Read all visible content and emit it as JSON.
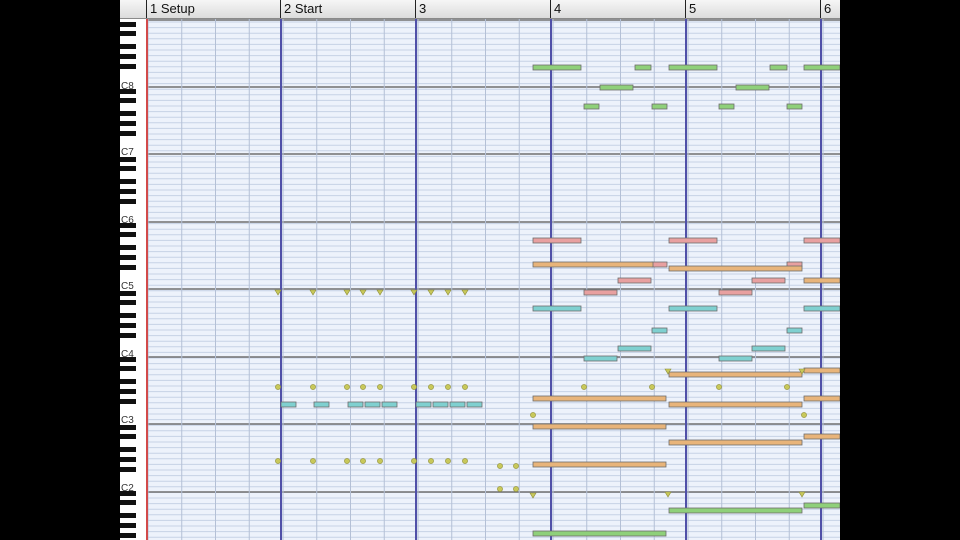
{
  "ruler": {
    "markers": [
      {
        "label": "1 Setup"
      },
      {
        "label": "2 Start"
      },
      {
        "label": "3"
      },
      {
        "label": "4"
      },
      {
        "label": "5"
      },
      {
        "label": "6"
      }
    ]
  },
  "keyboard": {
    "octave_labels": [
      "C8",
      "C7",
      "C6",
      "C5",
      "C4",
      "C3",
      "C2"
    ]
  },
  "note_colors": {
    "green": "#8fd07a",
    "red": "#e8a0a0",
    "orange": "#e8b47a",
    "teal": "#7fd0d0",
    "marker": "#c8c85a"
  }
}
